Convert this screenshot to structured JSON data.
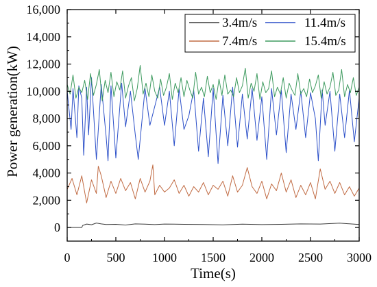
{
  "chart_data": {
    "type": "line",
    "xlabel": "Time(s)",
    "ylabel": "Power generation(kW)",
    "xlim": [
      0,
      3000
    ],
    "ylim": [
      -1000,
      16000
    ],
    "x_ticks": [
      0,
      500,
      1000,
      1500,
      2000,
      2500,
      3000
    ],
    "x_tick_labels": [
      "0",
      "500",
      "1000",
      "1500",
      "2000",
      "2500",
      "3000"
    ],
    "y_ticks": [
      0,
      2000,
      4000,
      6000,
      8000,
      10000,
      12000,
      14000,
      16000
    ],
    "y_tick_labels": [
      "0",
      "2,000",
      "4,000",
      "6,000",
      "8,000",
      "10,000",
      "12,000",
      "14,000",
      "16,000"
    ],
    "grid": false,
    "legend_position": "top-right",
    "series": [
      {
        "name": "3.4m/s",
        "color": "#3a3a3a",
        "x": [
          0,
          150,
          160,
          200,
          250,
          300,
          350,
          400,
          500,
          600,
          700,
          800,
          900,
          1000,
          1200,
          1400,
          1600,
          1800,
          2000,
          2200,
          2400,
          2600,
          2800,
          3000
        ],
        "y": [
          0,
          0,
          150,
          250,
          200,
          330,
          260,
          220,
          230,
          180,
          260,
          240,
          210,
          250,
          230,
          220,
          190,
          240,
          210,
          230,
          260,
          250,
          320,
          220
        ]
      },
      {
        "name": "11.4m/s",
        "color": "#2b4fc8",
        "x": [
          0,
          40,
          60,
          100,
          120,
          150,
          170,
          200,
          220,
          250,
          300,
          350,
          400,
          420,
          450,
          500,
          560,
          600,
          650,
          700,
          730,
          800,
          850,
          900,
          950,
          1000,
          1050,
          1100,
          1150,
          1200,
          1250,
          1300,
          1350,
          1400,
          1450,
          1500,
          1550,
          1600,
          1650,
          1700,
          1750,
          1800,
          1850,
          1900,
          1950,
          2000,
          2050,
          2100,
          2150,
          2200,
          2250,
          2300,
          2350,
          2400,
          2450,
          2500,
          2550,
          2580,
          2620,
          2650,
          2700,
          2750,
          2800,
          2850,
          2900,
          2950,
          3000
        ],
        "y": [
          10000,
          7200,
          10200,
          6600,
          10400,
          9500,
          5300,
          10300,
          6800,
          11000,
          5000,
          10500,
          6700,
          4900,
          10400,
          5100,
          10600,
          7400,
          10000,
          6800,
          5000,
          10200,
          7500,
          8900,
          10300,
          7500,
          10000,
          6000,
          10200,
          7200,
          8200,
          10100,
          5600,
          9500,
          5200,
          10200,
          4700,
          9700,
          6000,
          10300,
          5900,
          9800,
          6500,
          10200,
          6400,
          9600,
          5000,
          10200,
          6800,
          10100,
          5500,
          9800,
          7200,
          10000,
          6600,
          9900,
          8000,
          4900,
          10100,
          7500,
          10000,
          5600,
          9800,
          6600,
          10100,
          6300,
          9500
        ]
      },
      {
        "name": "7.4m/s",
        "color": "#c06a42",
        "x": [
          0,
          50,
          100,
          150,
          200,
          250,
          300,
          320,
          350,
          400,
          450,
          500,
          550,
          600,
          650,
          700,
          750,
          800,
          850,
          880,
          900,
          950,
          1000,
          1050,
          1100,
          1150,
          1200,
          1250,
          1300,
          1350,
          1400,
          1450,
          1500,
          1550,
          1600,
          1650,
          1700,
          1750,
          1800,
          1850,
          1900,
          1950,
          2000,
          2050,
          2100,
          2150,
          2200,
          2250,
          2300,
          2350,
          2400,
          2450,
          2500,
          2550,
          2600,
          2650,
          2700,
          2750,
          2800,
          2850,
          2900,
          2950,
          3000
        ],
        "y": [
          2800,
          3600,
          2400,
          3800,
          1800,
          3500,
          2500,
          4500,
          3800,
          2200,
          3400,
          2500,
          3600,
          2700,
          3300,
          2100,
          3600,
          2600,
          3400,
          4600,
          2400,
          3100,
          2600,
          2900,
          3500,
          2500,
          3100,
          2300,
          3000,
          2600,
          3300,
          2400,
          3100,
          2800,
          3400,
          2300,
          3800,
          2600,
          3100,
          4400,
          3000,
          2500,
          3400,
          2100,
          3200,
          2700,
          4000,
          2600,
          3500,
          2200,
          3100,
          2400,
          3300,
          2100,
          4300,
          2800,
          3400,
          2500,
          3300,
          2400,
          3000,
          2300,
          2900
        ]
      },
      {
        "name": "15.4m/s",
        "color": "#3d9a5e",
        "x": [
          0,
          30,
          60,
          90,
          120,
          150,
          180,
          210,
          240,
          270,
          300,
          330,
          360,
          390,
          420,
          450,
          480,
          510,
          540,
          570,
          600,
          630,
          660,
          690,
          720,
          750,
          780,
          810,
          840,
          870,
          900,
          930,
          960,
          990,
          1020,
          1050,
          1080,
          1110,
          1140,
          1170,
          1200,
          1230,
          1260,
          1290,
          1320,
          1350,
          1380,
          1410,
          1440,
          1470,
          1500,
          1530,
          1560,
          1590,
          1620,
          1650,
          1680,
          1710,
          1740,
          1770,
          1800,
          1830,
          1860,
          1890,
          1920,
          1950,
          1980,
          2010,
          2040,
          2070,
          2100,
          2130,
          2160,
          2190,
          2220,
          2250,
          2280,
          2310,
          2340,
          2370,
          2400,
          2430,
          2460,
          2490,
          2520,
          2550,
          2580,
          2610,
          2640,
          2670,
          2700,
          2730,
          2760,
          2790,
          2820,
          2850,
          2880,
          2910,
          2940,
          2970,
          3000
        ],
        "y": [
          10500,
          9800,
          11200,
          9500,
          10300,
          9900,
          10800,
          9400,
          11300,
          9700,
          10500,
          11600,
          9300,
          10800,
          9900,
          11400,
          9600,
          10700,
          10100,
          11500,
          9500,
          10400,
          11000,
          9300,
          10200,
          11900,
          9800,
          10600,
          9600,
          11200,
          10000,
          9500,
          10900,
          9700,
          10300,
          11300,
          9400,
          10600,
          9900,
          11000,
          9600,
          10800,
          10100,
          9500,
          11400,
          9800,
          10300,
          9600,
          11100,
          9900,
          10500,
          9400,
          10900,
          9700,
          11200,
          9800,
          10100,
          9600,
          11000,
          9900,
          10400,
          11700,
          9500,
          10600,
          10000,
          11300,
          9400,
          10700,
          9900,
          10200,
          11500,
          9600,
          10300,
          9800,
          11000,
          9500,
          10600,
          10100,
          9700,
          11300,
          9800,
          10200,
          9600,
          10900,
          9900,
          10400,
          11200,
          9500,
          10700,
          9800,
          10300,
          11400,
          9700,
          10100,
          11600,
          9600,
          10500,
          9900,
          11000,
          9700,
          10300
        ]
      }
    ]
  }
}
